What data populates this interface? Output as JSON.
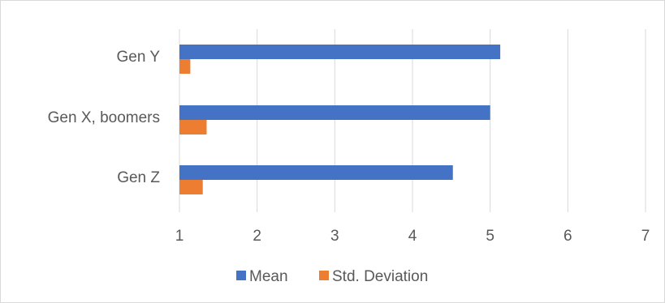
{
  "chart_data": {
    "type": "bar",
    "orientation": "horizontal",
    "categories": [
      "Gen Y",
      "Gen X, boomers",
      "Gen Z"
    ],
    "series": [
      {
        "name": "Mean",
        "values": [
          5.13,
          5.0,
          4.52
        ],
        "color": "#4472C4"
      },
      {
        "name": "Std. Deviation",
        "values": [
          1.14,
          1.35,
          1.3
        ],
        "color": "#ED7D31"
      }
    ],
    "xlim": [
      1,
      7
    ],
    "xticks": [
      1,
      2,
      3,
      4,
      5,
      6,
      7
    ],
    "grid": true,
    "legend": "bottom",
    "title": "",
    "xlabel": "",
    "ylabel": ""
  }
}
